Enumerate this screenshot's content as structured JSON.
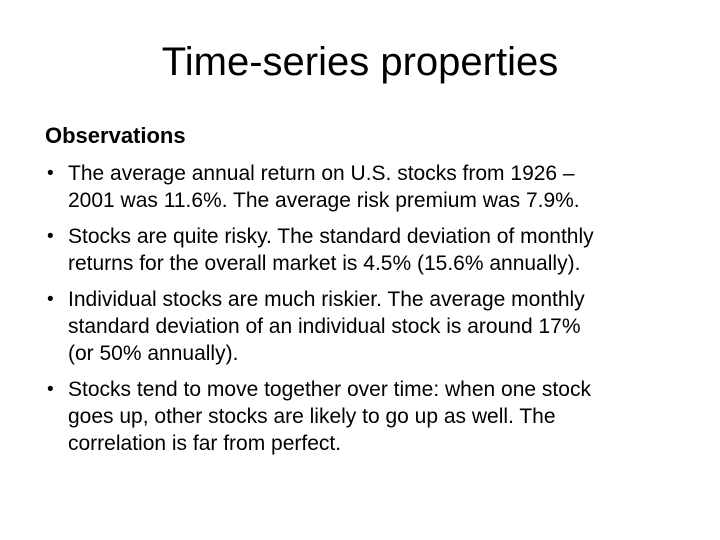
{
  "slide": {
    "title": "Time-series properties",
    "body": {
      "heading": "Observations",
      "bullet_char": "•",
      "bullets": [
        [
          "The average annual return on U.S. stocks from 1926 –",
          "2001 was 11.6%. The average risk premium was 7.9%."
        ],
        [
          "Stocks are quite risky. The standard deviation of monthly",
          "returns for the overall market is 4.5% (15.6% annually)."
        ],
        [
          "Individual stocks are much riskier. The average monthly",
          "standard deviation of an individual stock is around 17%",
          "(or 50% annually)."
        ],
        [
          "Stocks tend to move together over time: when one stock",
          "goes up, other stocks are likely to go up as well. The",
          "correlation is far from perfect."
        ]
      ]
    },
    "colors": {
      "background": "#ffffff",
      "text": "#000000"
    }
  }
}
